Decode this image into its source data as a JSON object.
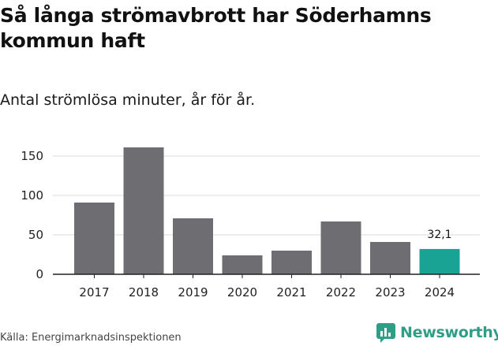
{
  "header": {
    "title": "Så långa strömavbrott har Söderhamns kommun haft",
    "subtitle": "Antal strömlösa minuter, år för år."
  },
  "footer": {
    "source": "Källa: Energimarknadsinspektionen",
    "brand_name": "Newsworthy",
    "brand_icon": "newsworthy-logo-icon"
  },
  "colors": {
    "bar_default": "#6e6d72",
    "bar_highlight": "#18a394",
    "grid": "#d9d9d9",
    "brand": "#2f9e86"
  },
  "chart_data": {
    "type": "bar",
    "title": "Så långa strömavbrott har Söderhamns kommun haft",
    "subtitle": "Antal strömlösa minuter, år för år.",
    "categories": [
      "2017",
      "2018",
      "2019",
      "2020",
      "2021",
      "2022",
      "2023",
      "2024"
    ],
    "values": [
      91,
      161,
      71,
      24,
      30,
      67,
      41,
      32.1
    ],
    "highlight_index": 7,
    "data_labels": [
      {
        "index": 7,
        "text": "32,1"
      }
    ],
    "y_ticks": [
      0,
      50,
      100,
      150
    ],
    "ylim": [
      0,
      165
    ],
    "grid": true
  }
}
